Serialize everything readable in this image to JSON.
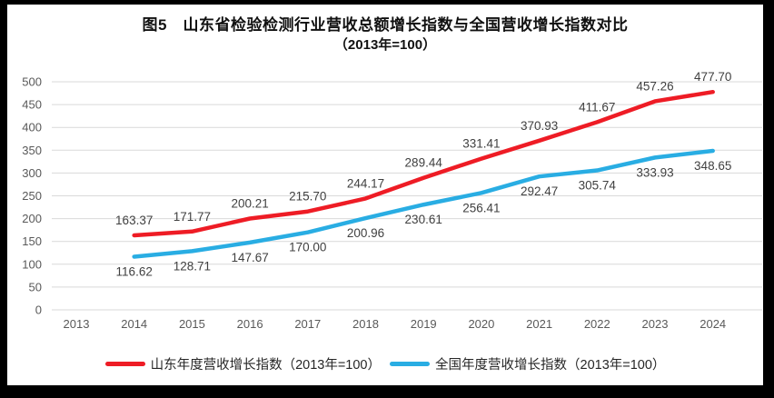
{
  "figure": {
    "title_line1": "图5　山东省检验检测行业营收总额增长指数与全国营收增长指数对比",
    "title_line2": "（2013年=100）"
  },
  "chart_data": {
    "type": "line",
    "title": "图5 山东省检验检测行业营收总额增长指数与全国营收增长指数对比（2013年=100）",
    "categories": [
      "2013",
      "2014",
      "2015",
      "2016",
      "2017",
      "2018",
      "2019",
      "2020",
      "2021",
      "2022",
      "2023",
      "2024"
    ],
    "series": [
      {
        "name": "山东年度营收增长指数（2013年=100）",
        "color": "#ee1c25",
        "label_position": "above",
        "values": [
          null,
          163.37,
          171.77,
          200.21,
          215.7,
          244.17,
          289.44,
          331.41,
          370.93,
          411.67,
          457.26,
          477.7
        ]
      },
      {
        "name": "全国年度营收增长指数（2013年=100）",
        "color": "#29ade3",
        "label_position": "below",
        "values": [
          null,
          116.62,
          128.71,
          147.67,
          170.0,
          200.96,
          230.61,
          256.41,
          292.47,
          305.74,
          333.93,
          348.65
        ]
      }
    ],
    "xlabel": "",
    "ylabel": "",
    "ylim": [
      0,
      500
    ],
    "ytick_step": 50,
    "grid": "horizontal",
    "legend_position": "bottom",
    "gridline_color": "#d9d9d9",
    "tick_label_color": "#595959",
    "data_label_color": "#404040"
  }
}
